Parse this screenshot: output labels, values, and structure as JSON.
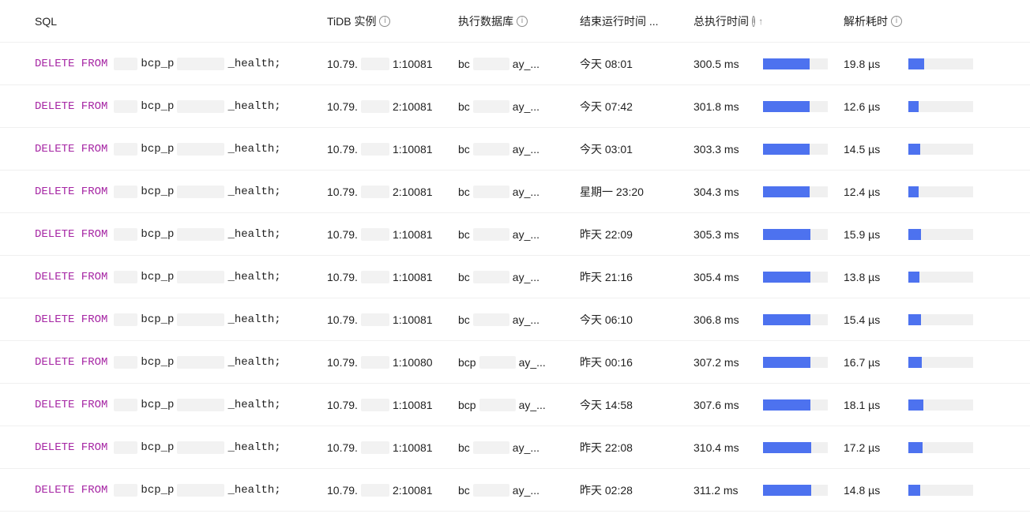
{
  "colors": {
    "keyword": "#a626a4",
    "bar_fill": "#4d72ef",
    "bar_track": "#f0f0f0",
    "text": "#1f1f1f",
    "border": "#f0f0f0",
    "icon": "#8c8c8c",
    "redact": "#f2f2f2"
  },
  "header": {
    "sql": "SQL",
    "instance": "TiDB 实例",
    "database": "执行数据库",
    "end_time": "结束运行时间 ...",
    "exec_time": "总执行时间",
    "parse_time": "解析耗时",
    "sort_indicator": "↑"
  },
  "redaction": {
    "sql_prefix": "　",
    "sql_mid": "　",
    "ip_mid": "　",
    "db_mid": "　"
  },
  "bar_scale": {
    "exec_max_ms": 420,
    "parse_max_us": 80
  },
  "rows": [
    {
      "sql_keyword": "DELETE FROM",
      "sql_table_a": "bcp_p",
      "sql_table_b": "_health;",
      "instance_a": "10.79.",
      "instance_b": "1:10081",
      "db_a": "bc",
      "db_b": "ay_...",
      "end_time": "今天 08:01",
      "exec_time": "300.5 ms",
      "exec_ms": 300.5,
      "parse_time": "19.8 µs",
      "parse_us": 19.8
    },
    {
      "sql_keyword": "DELETE FROM",
      "sql_table_a": "bcp_p",
      "sql_table_b": "_health;",
      "instance_a": "10.79.",
      "instance_b": "2:10081",
      "db_a": "bc",
      "db_b": "ay_...",
      "end_time": "今天 07:42",
      "exec_time": "301.8 ms",
      "exec_ms": 301.8,
      "parse_time": "12.6 µs",
      "parse_us": 12.6
    },
    {
      "sql_keyword": "DELETE FROM",
      "sql_table_a": "bcp_p",
      "sql_table_b": "_health;",
      "instance_a": "10.79.",
      "instance_b": "1:10081",
      "db_a": "bc",
      "db_b": "ay_...",
      "end_time": "今天 03:01",
      "exec_time": "303.3 ms",
      "exec_ms": 303.3,
      "parse_time": "14.5 µs",
      "parse_us": 14.5
    },
    {
      "sql_keyword": "DELETE FROM",
      "sql_table_a": "bcp_p",
      "sql_table_b": "_health;",
      "instance_a": "10.79.",
      "instance_b": "2:10081",
      "db_a": "bc",
      "db_b": "ay_...",
      "end_time": "星期一 23:20",
      "exec_time": "304.3 ms",
      "exec_ms": 304.3,
      "parse_time": "12.4 µs",
      "parse_us": 12.4
    },
    {
      "sql_keyword": "DELETE FROM",
      "sql_table_a": "bcp_p",
      "sql_table_b": "_health;",
      "instance_a": "10.79.",
      "instance_b": "1:10081",
      "db_a": "bc",
      "db_b": "ay_...",
      "end_time": "昨天 22:09",
      "exec_time": "305.3 ms",
      "exec_ms": 305.3,
      "parse_time": "15.9 µs",
      "parse_us": 15.9
    },
    {
      "sql_keyword": "DELETE FROM",
      "sql_table_a": "bcp_p",
      "sql_table_b": "_health;",
      "instance_a": "10.79.",
      "instance_b": "1:10081",
      "db_a": "bc",
      "db_b": "ay_...",
      "end_time": "昨天 21:16",
      "exec_time": "305.4 ms",
      "exec_ms": 305.4,
      "parse_time": "13.8 µs",
      "parse_us": 13.8
    },
    {
      "sql_keyword": "DELETE FROM",
      "sql_table_a": "bcp_p",
      "sql_table_b": "_health;",
      "instance_a": "10.79.",
      "instance_b": "1:10081",
      "db_a": "bc",
      "db_b": "ay_...",
      "end_time": "今天 06:10",
      "exec_time": "306.8 ms",
      "exec_ms": 306.8,
      "parse_time": "15.4 µs",
      "parse_us": 15.4
    },
    {
      "sql_keyword": "DELETE FROM",
      "sql_table_a": "bcp_p",
      "sql_table_b": "_health;",
      "instance_a": "10.79.",
      "instance_b": "1:10080",
      "db_a": "bcp",
      "db_b": "ay_...",
      "end_time": "昨天 00:16",
      "exec_time": "307.2 ms",
      "exec_ms": 307.2,
      "parse_time": "16.7 µs",
      "parse_us": 16.7
    },
    {
      "sql_keyword": "DELETE FROM",
      "sql_table_a": "bcp_p",
      "sql_table_b": "_health;",
      "instance_a": "10.79.",
      "instance_b": "1:10081",
      "db_a": "bcp",
      "db_b": "ay_...",
      "end_time": "今天 14:58",
      "exec_time": "307.6 ms",
      "exec_ms": 307.6,
      "parse_time": "18.1 µs",
      "parse_us": 18.1
    },
    {
      "sql_keyword": "DELETE FROM",
      "sql_table_a": "bcp_p",
      "sql_table_b": "_health;",
      "instance_a": "10.79.",
      "instance_b": "1:10081",
      "db_a": "bc",
      "db_b": "ay_...",
      "end_time": "昨天 22:08",
      "exec_time": "310.4 ms",
      "exec_ms": 310.4,
      "parse_time": "17.2 µs",
      "parse_us": 17.2
    },
    {
      "sql_keyword": "DELETE FROM",
      "sql_table_a": "bcp_p",
      "sql_table_b": "_health;",
      "instance_a": "10.79.",
      "instance_b": "2:10081",
      "db_a": "bc",
      "db_b": "ay_...",
      "end_time": "昨天 02:28",
      "exec_time": "311.2 ms",
      "exec_ms": 311.2,
      "parse_time": "14.8 µs",
      "parse_us": 14.8
    }
  ]
}
